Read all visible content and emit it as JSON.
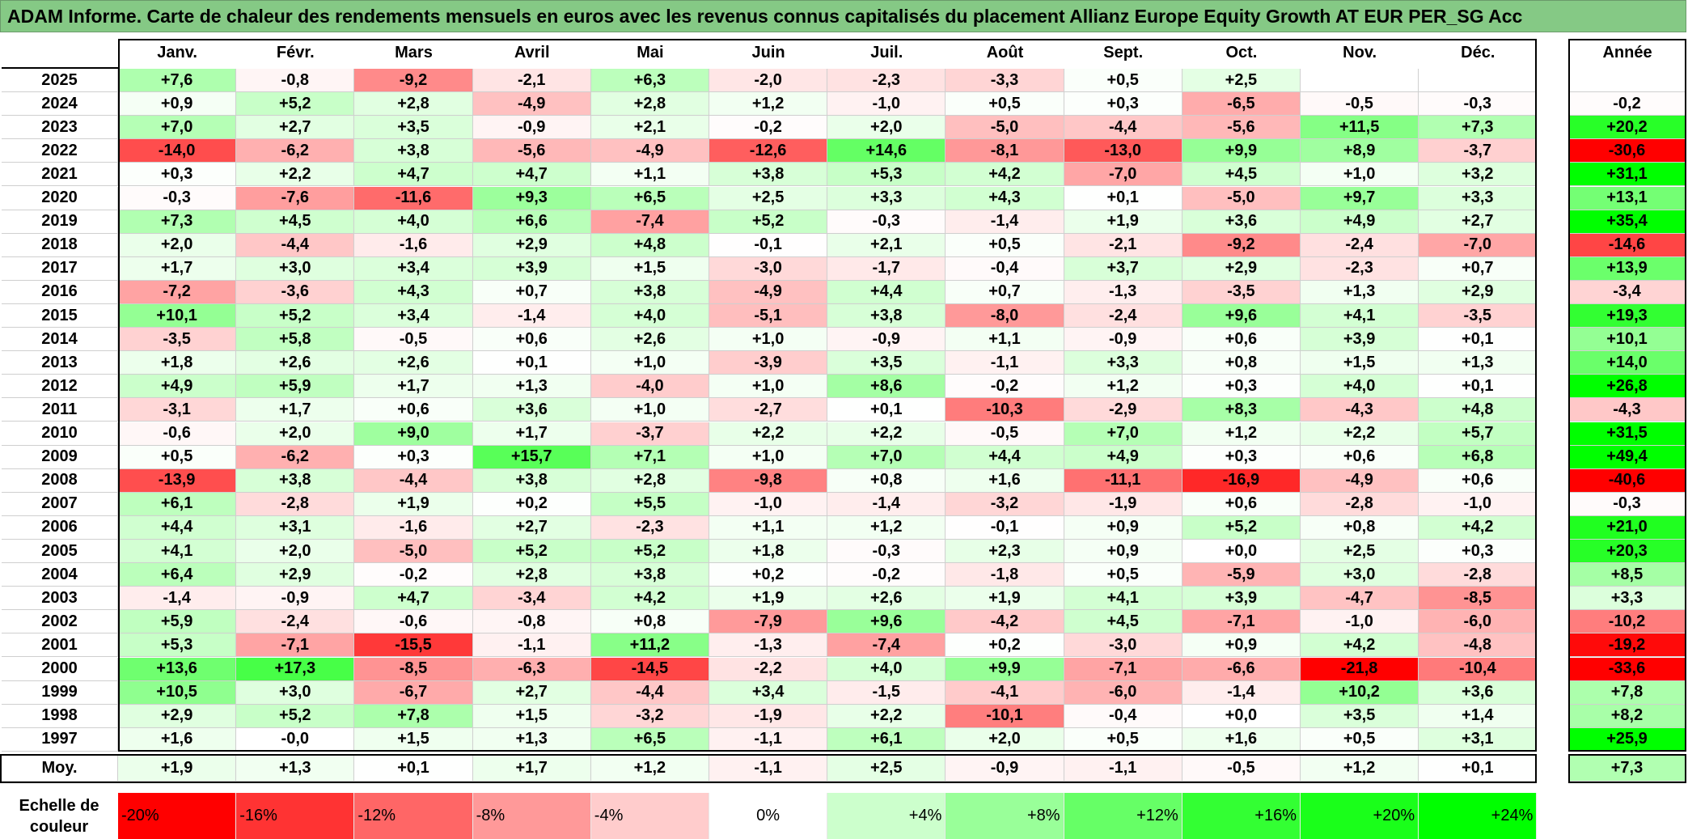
{
  "title": "ADAM Informe. Carte de chaleur des rendements mensuels en euros avec les revenus connus capitalisés du placement Allianz Europe Equity Growth AT EUR PER_SG Acc",
  "chart_data": {
    "type": "heatmap",
    "title": "ADAM Informe. Carte de chaleur des rendements mensuels en euros avec les revenus connus capitalisés du placement Allianz Europe Equity Growth AT EUR PER_SG Acc",
    "columns": [
      "Janv.",
      "Févr.",
      "Mars",
      "Avril",
      "Mai",
      "Juin",
      "Juil.",
      "Août",
      "Sept.",
      "Oct.",
      "Nov.",
      "Déc."
    ],
    "annual_header": "Année",
    "rows": [
      {
        "year": "2025",
        "values": [
          "+7,6",
          "-0,8",
          "-9,2",
          "-2,1",
          "+6,3",
          "-2,0",
          "-2,3",
          "-3,3",
          "+0,5",
          "+2,5",
          "",
          ""
        ],
        "annual": ""
      },
      {
        "year": "2024",
        "values": [
          "+0,9",
          "+5,2",
          "+2,8",
          "-4,9",
          "+2,8",
          "+1,2",
          "-1,0",
          "+0,5",
          "+0,3",
          "-6,5",
          "-0,5",
          "-0,3"
        ],
        "annual": "-0,2"
      },
      {
        "year": "2023",
        "values": [
          "+7,0",
          "+2,7",
          "+3,5",
          "-0,9",
          "+2,1",
          "-0,2",
          "+2,0",
          "-5,0",
          "-4,4",
          "-5,6",
          "+11,5",
          "+7,3"
        ],
        "annual": "+20,2"
      },
      {
        "year": "2022",
        "values": [
          "-14,0",
          "-6,2",
          "+3,8",
          "-5,6",
          "-4,9",
          "-12,6",
          "+14,6",
          "-8,1",
          "-13,0",
          "+9,9",
          "+8,9",
          "-3,7"
        ],
        "annual": "-30,6"
      },
      {
        "year": "2021",
        "values": [
          "+0,3",
          "+2,2",
          "+4,7",
          "+4,7",
          "+1,1",
          "+3,8",
          "+5,3",
          "+4,2",
          "-7,0",
          "+4,5",
          "+1,0",
          "+3,2"
        ],
        "annual": "+31,1"
      },
      {
        "year": "2020",
        "values": [
          "-0,3",
          "-7,6",
          "-11,6",
          "+9,3",
          "+6,5",
          "+2,5",
          "+3,3",
          "+4,3",
          "+0,1",
          "-5,0",
          "+9,7",
          "+3,3"
        ],
        "annual": "+13,1"
      },
      {
        "year": "2019",
        "values": [
          "+7,3",
          "+4,5",
          "+4,0",
          "+6,6",
          "-7,4",
          "+5,2",
          "-0,3",
          "-1,4",
          "+1,9",
          "+3,6",
          "+4,9",
          "+2,7"
        ],
        "annual": "+35,4"
      },
      {
        "year": "2018",
        "values": [
          "+2,0",
          "-4,4",
          "-1,6",
          "+2,9",
          "+4,8",
          "-0,1",
          "+2,1",
          "+0,5",
          "-2,1",
          "-9,2",
          "-2,4",
          "-7,0"
        ],
        "annual": "-14,6"
      },
      {
        "year": "2017",
        "values": [
          "+1,7",
          "+3,0",
          "+3,4",
          "+3,9",
          "+1,5",
          "-3,0",
          "-1,7",
          "-0,4",
          "+3,7",
          "+2,9",
          "-2,3",
          "+0,7"
        ],
        "annual": "+13,9"
      },
      {
        "year": "2016",
        "values": [
          "-7,2",
          "-3,6",
          "+4,3",
          "+0,7",
          "+3,8",
          "-4,9",
          "+4,4",
          "+0,7",
          "-1,3",
          "-3,5",
          "+1,3",
          "+2,9"
        ],
        "annual": "-3,4"
      },
      {
        "year": "2015",
        "values": [
          "+10,1",
          "+5,2",
          "+3,4",
          "-1,4",
          "+4,0",
          "-5,1",
          "+3,8",
          "-8,0",
          "-2,4",
          "+9,6",
          "+4,1",
          "-3,5"
        ],
        "annual": "+19,3"
      },
      {
        "year": "2014",
        "values": [
          "-3,5",
          "+5,8",
          "-0,5",
          "+0,6",
          "+2,6",
          "+1,0",
          "-0,9",
          "+1,1",
          "-0,9",
          "+0,6",
          "+3,9",
          "+0,1"
        ],
        "annual": "+10,1"
      },
      {
        "year": "2013",
        "values": [
          "+1,8",
          "+2,6",
          "+2,6",
          "+0,1",
          "+1,0",
          "-3,9",
          "+3,5",
          "-1,1",
          "+3,3",
          "+0,8",
          "+1,5",
          "+1,3"
        ],
        "annual": "+14,0"
      },
      {
        "year": "2012",
        "values": [
          "+4,9",
          "+5,9",
          "+1,7",
          "+1,3",
          "-4,0",
          "+1,0",
          "+8,6",
          "-0,2",
          "+1,2",
          "+0,3",
          "+4,0",
          "+0,1"
        ],
        "annual": "+26,8"
      },
      {
        "year": "2011",
        "values": [
          "-3,1",
          "+1,7",
          "+0,6",
          "+3,6",
          "+1,0",
          "-2,7",
          "+0,1",
          "-10,3",
          "-2,9",
          "+8,3",
          "-4,3",
          "+4,8"
        ],
        "annual": "-4,3"
      },
      {
        "year": "2010",
        "values": [
          "-0,6",
          "+2,0",
          "+9,0",
          "+1,7",
          "-3,7",
          "+2,2",
          "+2,2",
          "-0,5",
          "+7,0",
          "+1,2",
          "+2,2",
          "+5,7"
        ],
        "annual": "+31,5"
      },
      {
        "year": "2009",
        "values": [
          "+0,5",
          "-6,2",
          "+0,3",
          "+15,7",
          "+7,1",
          "+1,0",
          "+7,0",
          "+4,4",
          "+4,9",
          "+0,3",
          "+0,6",
          "+6,8"
        ],
        "annual": "+49,4"
      },
      {
        "year": "2008",
        "values": [
          "-13,9",
          "+3,8",
          "-4,4",
          "+3,8",
          "+2,8",
          "-9,8",
          "+0,8",
          "+1,6",
          "-11,1",
          "-16,9",
          "-4,9",
          "+0,6"
        ],
        "annual": "-40,6"
      },
      {
        "year": "2007",
        "values": [
          "+6,1",
          "-2,8",
          "+1,9",
          "+0,2",
          "+5,5",
          "-1,0",
          "-1,4",
          "-3,2",
          "-1,9",
          "+0,6",
          "-2,8",
          "-1,0"
        ],
        "annual": "-0,3"
      },
      {
        "year": "2006",
        "values": [
          "+4,4",
          "+3,1",
          "-1,6",
          "+2,7",
          "-2,3",
          "+1,1",
          "+1,2",
          "-0,1",
          "+0,9",
          "+5,2",
          "+0,8",
          "+4,2"
        ],
        "annual": "+21,0"
      },
      {
        "year": "2005",
        "values": [
          "+4,1",
          "+2,0",
          "-5,0",
          "+5,2",
          "+5,2",
          "+1,8",
          "-0,3",
          "+2,3",
          "+0,9",
          "+0,0",
          "+2,5",
          "+0,3"
        ],
        "annual": "+20,3"
      },
      {
        "year": "2004",
        "values": [
          "+6,4",
          "+2,9",
          "-0,2",
          "+2,8",
          "+3,8",
          "+0,2",
          "-0,2",
          "-1,8",
          "+0,5",
          "-5,9",
          "+3,0",
          "-2,8"
        ],
        "annual": "+8,5"
      },
      {
        "year": "2003",
        "values": [
          "-1,4",
          "-0,9",
          "+4,7",
          "-3,4",
          "+4,2",
          "+1,9",
          "+2,6",
          "+1,9",
          "+4,1",
          "+3,9",
          "-4,7",
          "-8,5"
        ],
        "annual": "+3,3"
      },
      {
        "year": "2002",
        "values": [
          "+5,9",
          "-2,4",
          "-0,6",
          "-0,8",
          "+0,8",
          "-7,9",
          "+9,6",
          "-4,2",
          "+4,5",
          "-7,1",
          "-1,0",
          "-6,0"
        ],
        "annual": "-10,2"
      },
      {
        "year": "2001",
        "values": [
          "+5,3",
          "-7,1",
          "-15,5",
          "-1,1",
          "+11,2",
          "-1,3",
          "-7,4",
          "+0,2",
          "-3,0",
          "+0,9",
          "+4,2",
          "-4,8"
        ],
        "annual": "-19,2"
      },
      {
        "year": "2000",
        "values": [
          "+13,6",
          "+17,3",
          "-8,5",
          "-6,3",
          "-14,5",
          "-2,2",
          "+4,0",
          "+9,9",
          "-7,1",
          "-6,6",
          "-21,8",
          "-10,4"
        ],
        "annual": "-33,6"
      },
      {
        "year": "1999",
        "values": [
          "+10,5",
          "+3,0",
          "-6,7",
          "+2,7",
          "-4,4",
          "+3,4",
          "-1,5",
          "-4,1",
          "-6,0",
          "-1,4",
          "+10,2",
          "+3,6"
        ],
        "annual": "+7,8"
      },
      {
        "year": "1998",
        "values": [
          "+2,9",
          "+5,2",
          "+7,8",
          "+1,5",
          "-3,2",
          "-1,9",
          "+2,2",
          "-10,1",
          "-0,4",
          "+0,0",
          "+3,5",
          "+1,4"
        ],
        "annual": "+8,2"
      },
      {
        "year": "1997",
        "values": [
          "+1,6",
          "-0,0",
          "+1,5",
          "+1,3",
          "+6,5",
          "-1,1",
          "+6,1",
          "+2,0",
          "+0,5",
          "+1,6",
          "+0,5",
          "+3,1"
        ],
        "annual": "+25,9"
      }
    ],
    "average": {
      "label": "Moy.",
      "values": [
        "+1,9",
        "+1,3",
        "+0,1",
        "+1,7",
        "+1,2",
        "-1,1",
        "+2,5",
        "-0,9",
        "-1,1",
        "-0,5",
        "+1,2",
        "+0,1"
      ],
      "annual": "+7,3"
    },
    "scale": {
      "label": "Echelle de couleur",
      "stops": [
        "-20%",
        "-16%",
        "-12%",
        "-8%",
        "-4%",
        "0%",
        "+4%",
        "+8%",
        "+12%",
        "+16%",
        "+20%",
        "+24%"
      ],
      "colors": [
        "#ff0000",
        "#ff3333",
        "#ff6666",
        "#ff9999",
        "#ffcccc",
        "#ffffff",
        "#ccffcc",
        "#99ff99",
        "#66ff66",
        "#33ff33",
        "#1aff1a",
        "#00ff00"
      ]
    },
    "color_rule": {
      "negative": "#ff0000",
      "zero": "#ffffff",
      "positive": "#00ff00",
      "neg_full_at": -20,
      "pos_full_at": 24
    }
  }
}
